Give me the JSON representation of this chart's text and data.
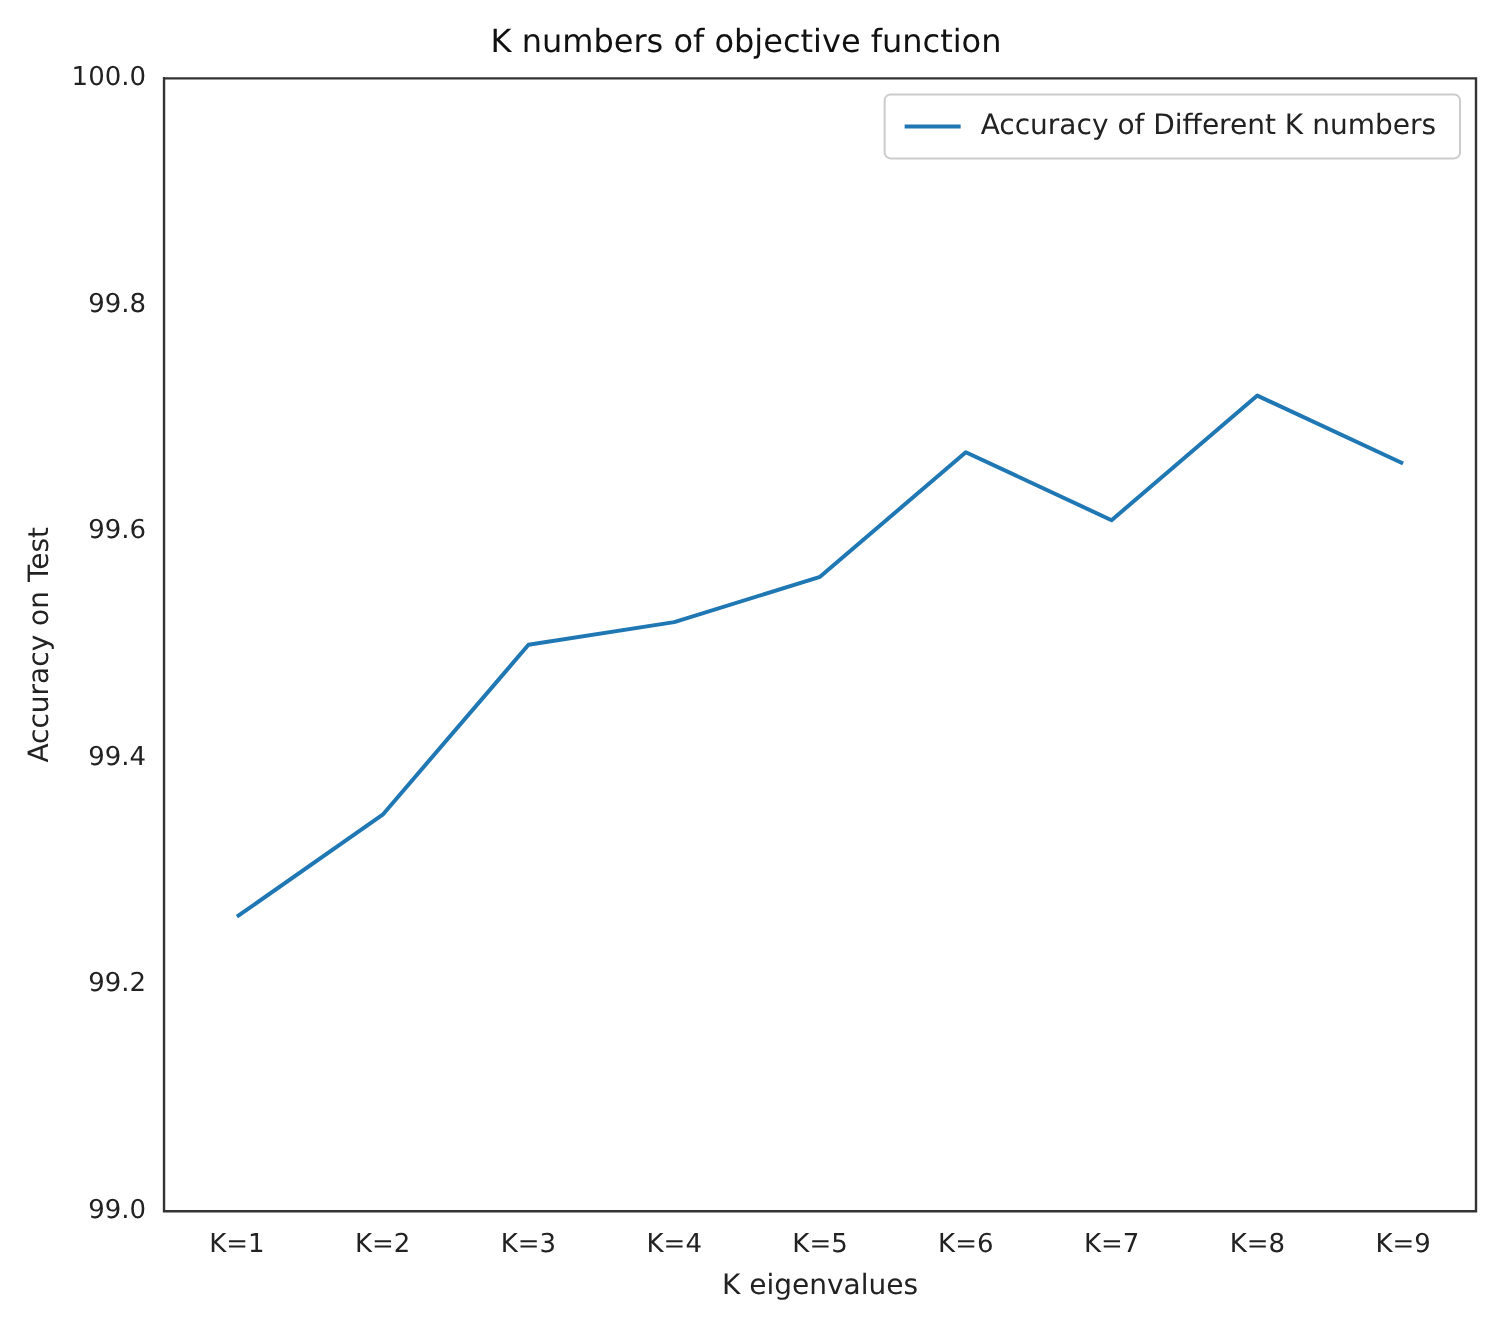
{
  "chart_data": {
    "type": "line",
    "title": "K numbers of objective function",
    "xlabel": "K eigenvalues",
    "ylabel": "Accuracy on Test",
    "categories": [
      "K=1",
      "K=2",
      "K=3",
      "K=4",
      "K=5",
      "K=6",
      "K=7",
      "K=8",
      "K=9"
    ],
    "series": [
      {
        "name": "Accuracy of Different K numbers",
        "color": "#1f77b4",
        "values": [
          99.26,
          99.35,
          99.5,
          99.52,
          99.56,
          99.67,
          99.61,
          99.72,
          99.66
        ]
      }
    ],
    "ylim": [
      99.0,
      100.0
    ],
    "yticks": [
      {
        "value": 99.0,
        "label": "99.0"
      },
      99.2,
      99.4,
      99.6,
      99.8,
      {
        "value": 100.0,
        "label": "100.0"
      }
    ],
    "grid": false,
    "legend": "top right",
    "marker": "none",
    "line_style": "solid"
  }
}
